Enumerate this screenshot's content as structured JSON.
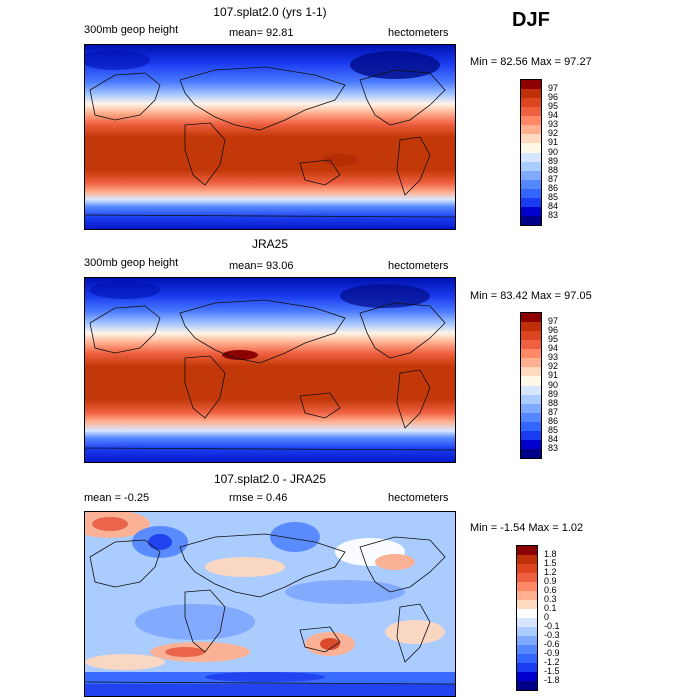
{
  "season": "DJF",
  "panels": [
    {
      "title": "107.splat2.0 (yrs 1-1)",
      "left_label": "300mb geop height",
      "center_label": "mean=  92.81",
      "right_label": "hectometers",
      "stats": "Min =  82.56 Max =  97.27",
      "colorbar": {
        "colors": [
          "#000088",
          "#0000cc",
          "#1a3cf0",
          "#3366ff",
          "#5588ff",
          "#80aaff",
          "#aaccff",
          "#d6e6ff",
          "#fff8e6",
          "#ffd8c0",
          "#ffb090",
          "#ff8866",
          "#ee6040",
          "#dd4420",
          "#c03008",
          "#8b0000"
        ],
        "labels": [
          "97",
          "96",
          "95",
          "94",
          "93",
          "92",
          "91",
          "90",
          "89",
          "88",
          "87",
          "86",
          "85",
          "84",
          "83"
        ]
      }
    },
    {
      "title": "JRA25",
      "left_label": "300mb geop height",
      "center_label": "mean=  93.06",
      "right_label": "hectometers",
      "stats": "Min =  83.42 Max =  97.05",
      "colorbar": {
        "colors": [
          "#000088",
          "#0000cc",
          "#1a3cf0",
          "#3366ff",
          "#5588ff",
          "#80aaff",
          "#aaccff",
          "#d6e6ff",
          "#fff8e6",
          "#ffd8c0",
          "#ffb090",
          "#ff8866",
          "#ee6040",
          "#dd4420",
          "#c03008",
          "#8b0000"
        ],
        "labels": [
          "97",
          "96",
          "95",
          "94",
          "93",
          "92",
          "91",
          "90",
          "89",
          "88",
          "87",
          "86",
          "85",
          "84",
          "83"
        ]
      }
    },
    {
      "title": "107.splat2.0 - JRA25",
      "left_label": "mean =  -0.25",
      "center_label": "rmse =   0.46",
      "right_label": "hectometers",
      "stats": "Min =  -1.54 Max =   1.02",
      "colorbar": {
        "colors": [
          "#000088",
          "#0000cc",
          "#1a3cf0",
          "#3366ff",
          "#5588ff",
          "#80aaff",
          "#aaccff",
          "#d6e6ff",
          "#ffffff",
          "#ffd8c0",
          "#ffb090",
          "#ff8866",
          "#ee6040",
          "#dd4420",
          "#c03008",
          "#8b0000"
        ],
        "labels": [
          "1.8",
          "1.5",
          "1.2",
          "0.9",
          "0.6",
          "0.3",
          "0.1",
          "0",
          "-0.1",
          "-0.3",
          "-0.6",
          "-0.9",
          "-1.2",
          "-1.5",
          "-1.8"
        ]
      }
    }
  ]
}
